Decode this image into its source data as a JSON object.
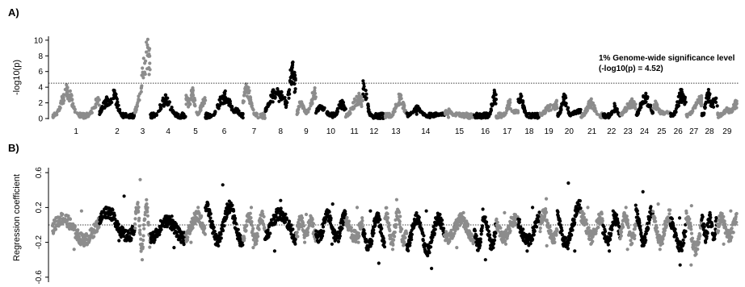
{
  "chart_data": [
    {
      "type": "scatter",
      "panel_label": "A)",
      "ylabel": "-log10(p)",
      "yticks": [
        "0",
        "2",
        "4",
        "6",
        "8",
        "10"
      ],
      "ylim": [
        0,
        10.5
      ],
      "threshold": 4.52,
      "annotation_line1": "1% Genome-wide significance level",
      "annotation_line2": "(-log10(p) = 4.52)",
      "chromosomes": [
        "1",
        "2",
        "3",
        "4",
        "5",
        "6",
        "7",
        "8",
        "9",
        "10",
        "11",
        "12",
        "13",
        "14",
        "15",
        "16",
        "17",
        "18",
        "19",
        "20",
        "21",
        "22",
        "23",
        "24",
        "25",
        "26",
        "27",
        "28",
        "29"
      ],
      "chromosome_peaks": [
        4.3,
        3.6,
        10.1,
        3.0,
        3.9,
        3.5,
        4.4,
        7.2,
        3.9,
        2.3,
        3.2,
        4.8,
        3.1,
        1.6,
        1.2,
        3.6,
        2.4,
        3.1,
        2.3,
        3.1,
        2.5,
        1.9,
        2.5,
        3.2,
        2.2,
        3.7,
        2.9,
        3.7,
        2.3
      ],
      "series_colors": [
        "#8c8c8c",
        "#000000"
      ]
    },
    {
      "type": "scatter",
      "panel_label": "B)",
      "ylabel": "Regression coefficient",
      "yticks": [
        "-0.6",
        "-0.2",
        "0.2",
        "0.6"
      ],
      "ylim": [
        -0.62,
        0.62
      ],
      "reference_line": 0.0,
      "chromosome_extremes": [
        [
          -0.28,
          0.16
        ],
        [
          -0.18,
          0.33
        ],
        [
          -0.4,
          0.52
        ],
        [
          -0.26,
          0.1
        ],
        [
          -0.2,
          0.2
        ],
        [
          -0.24,
          0.46
        ],
        [
          -0.26,
          0.2
        ],
        [
          -0.3,
          0.28
        ],
        [
          -0.2,
          0.12
        ],
        [
          -0.22,
          0.24
        ],
        [
          -0.2,
          0.2
        ],
        [
          -0.44,
          0.16
        ],
        [
          -0.28,
          0.29
        ],
        [
          -0.5,
          0.16
        ],
        [
          -0.26,
          0.14
        ],
        [
          -0.4,
          0.18
        ],
        [
          -0.22,
          0.14
        ],
        [
          -0.3,
          0.2
        ],
        [
          -0.24,
          0.3
        ],
        [
          -0.3,
          0.48
        ],
        [
          -0.22,
          0.2
        ],
        [
          -0.3,
          0.16
        ],
        [
          -0.28,
          0.2
        ],
        [
          -0.24,
          0.38
        ],
        [
          -0.28,
          0.24
        ],
        [
          -0.46,
          0.08
        ],
        [
          -0.46,
          0.22
        ],
        [
          -0.2,
          0.14
        ],
        [
          -0.22,
          0.16
        ]
      ],
      "series_colors": [
        "#8c8c8c",
        "#000000"
      ]
    }
  ]
}
